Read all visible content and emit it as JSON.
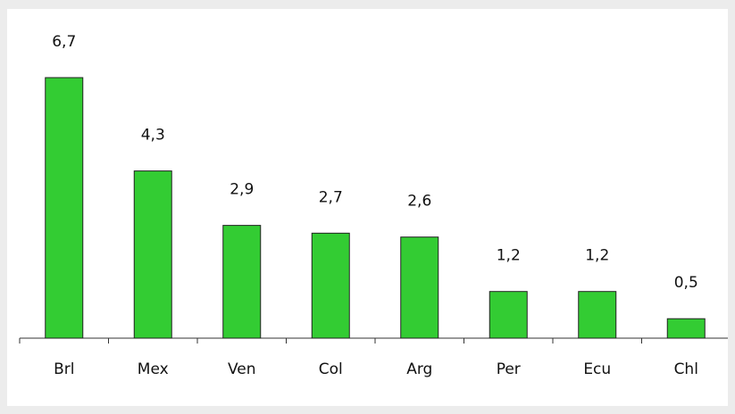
{
  "chart_data": {
    "type": "bar",
    "categories": [
      "Brl",
      "Mex",
      "Ven",
      "Col",
      "Arg",
      "Per",
      "Ecu",
      "Chl"
    ],
    "values": [
      6.7,
      4.3,
      2.9,
      2.7,
      2.6,
      1.2,
      1.2,
      0.5
    ],
    "value_labels": [
      "6,7",
      "4,3",
      "2,9",
      "2,7",
      "2,6",
      "1,2",
      "1,2",
      "0,5"
    ],
    "color": "#33cc33"
  }
}
